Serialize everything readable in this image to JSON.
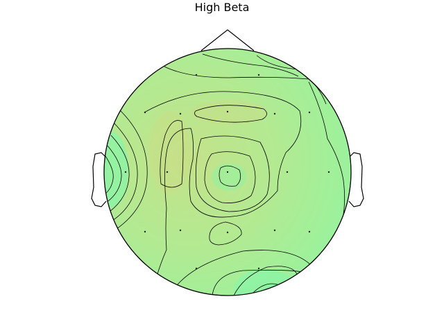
{
  "title": "High Beta",
  "colors": {
    "background": "#ffffff",
    "outline": "#000000",
    "contour": "#000000",
    "field_high": "#c8df86",
    "field_mid": "#a6f09c",
    "field_low": "#86f5a8"
  },
  "electrodes": [
    "Fp1",
    "Fp2",
    "F7",
    "F3",
    "Fz",
    "F4",
    "F8",
    "T3",
    "C3",
    "Cz",
    "C4",
    "T4",
    "T5",
    "P3",
    "Pz",
    "P4",
    "T6",
    "O1",
    "O2"
  ]
}
